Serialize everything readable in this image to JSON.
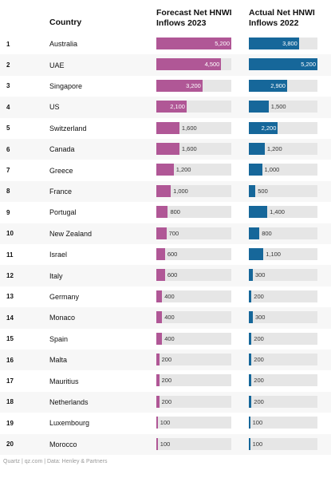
{
  "chart_data": {
    "type": "bar",
    "headers": {
      "country": "Country",
      "forecast_line1": "Forecast Net HNWI",
      "forecast_line2": "Inflows 2023",
      "actual_line1": "Actual Net HNWI",
      "actual_line2": "Inflows 2022"
    },
    "categories": [
      "Australia",
      "UAE",
      "Singapore",
      "US",
      "Switzerland",
      "Canada",
      "Greece",
      "France",
      "Portugal",
      "New Zealand",
      "Israel",
      "Italy",
      "Germany",
      "Monaco",
      "Spain",
      "Malta",
      "Mauritius",
      "Netherlands",
      "Luxembourg",
      "Morocco"
    ],
    "ranks": [
      "1",
      "2",
      "3",
      "4",
      "5",
      "6",
      "7",
      "8",
      "9",
      "10",
      "11",
      "12",
      "13",
      "14",
      "15",
      "16",
      "17",
      "18",
      "19",
      "20"
    ],
    "series": [
      {
        "name": "Forecast Net HNWI Inflows 2023",
        "values": [
          5200,
          4500,
          3200,
          2100,
          1600,
          1600,
          1200,
          1000,
          800,
          700,
          600,
          600,
          400,
          400,
          400,
          200,
          200,
          200,
          100,
          100
        ]
      },
      {
        "name": "Actual Net HNWI Inflows 2022",
        "values": [
          3800,
          5200,
          2900,
          1500,
          2200,
          1200,
          1000,
          500,
          1400,
          800,
          1100,
          300,
          200,
          300,
          200,
          200,
          200,
          200,
          100,
          100
        ]
      }
    ],
    "colors": {
      "forecast": "#b05796",
      "actual": "#16679a",
      "track": "#e6e6e6"
    },
    "max": 5200
  },
  "footer": "Quartz | qz.com | Data: Henley & Partners"
}
